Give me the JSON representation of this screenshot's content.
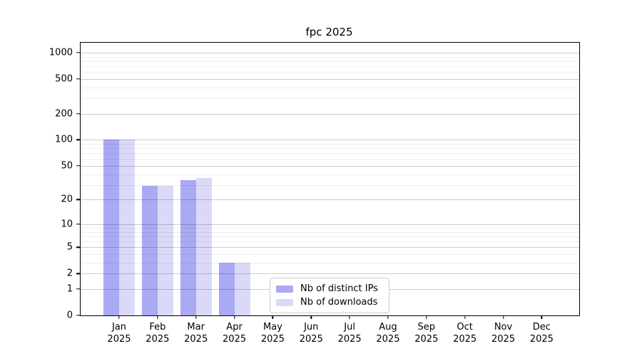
{
  "title": "fpc 2025",
  "colors": {
    "bar_distinct_ips": "#a9a9f4",
    "bar_downloads": "#dadaf8",
    "major_gridline": "#cbcbcb",
    "minor_gridline": "#ededed",
    "axis_spine": "#000000",
    "legend_border": "#cccccc",
    "text": "#000000"
  },
  "legend": {
    "entries": [
      {
        "label": "Nb of distinct IPs",
        "color_key": "bar_distinct_ips"
      },
      {
        "label": "Nb of downloads",
        "color_key": "bar_downloads"
      }
    ]
  },
  "x_axis": {
    "months": [
      "Jan",
      "Feb",
      "Mar",
      "Apr",
      "May",
      "Jun",
      "Jul",
      "Aug",
      "Sep",
      "Oct",
      "Nov",
      "Dec"
    ],
    "year": "2025"
  },
  "y_axis": {
    "tick_labels": [
      "0",
      "1",
      "2",
      "5",
      "10",
      "20",
      "50",
      "100",
      "200",
      "500",
      "1000"
    ],
    "major_tick_values": [
      0,
      1,
      2,
      5,
      10,
      20,
      50,
      100,
      200,
      500,
      1000
    ],
    "minor_tick_values": [
      3,
      4,
      6,
      7,
      8,
      9,
      30,
      40,
      60,
      70,
      80,
      90,
      300,
      400,
      600,
      700,
      800,
      900
    ]
  },
  "chart_data": {
    "type": "bar",
    "title": "fpc 2025",
    "categories": [
      "Jan 2025",
      "Feb 2025",
      "Mar 2025",
      "Apr 2025",
      "May 2025",
      "Jun 2025",
      "Jul 2025",
      "Aug 2025",
      "Sep 2025",
      "Oct 2025",
      "Nov 2025",
      "Dec 2025"
    ],
    "series": [
      {
        "name": "Nb of distinct IPs",
        "values": [
          100,
          29,
          34,
          3,
          0,
          0,
          0,
          0,
          0,
          0,
          0,
          0
        ]
      },
      {
        "name": "Nb of downloads",
        "values": [
          100,
          29,
          36,
          3,
          0,
          0,
          0,
          0,
          0,
          0,
          0,
          0
        ]
      }
    ],
    "xlabel": "",
    "ylabel": "",
    "yscale": "log10(value+1)",
    "ylim": [
      0,
      1280
    ],
    "grid": true,
    "grid_above_bars": true,
    "legend_position": "inside lower center"
  }
}
